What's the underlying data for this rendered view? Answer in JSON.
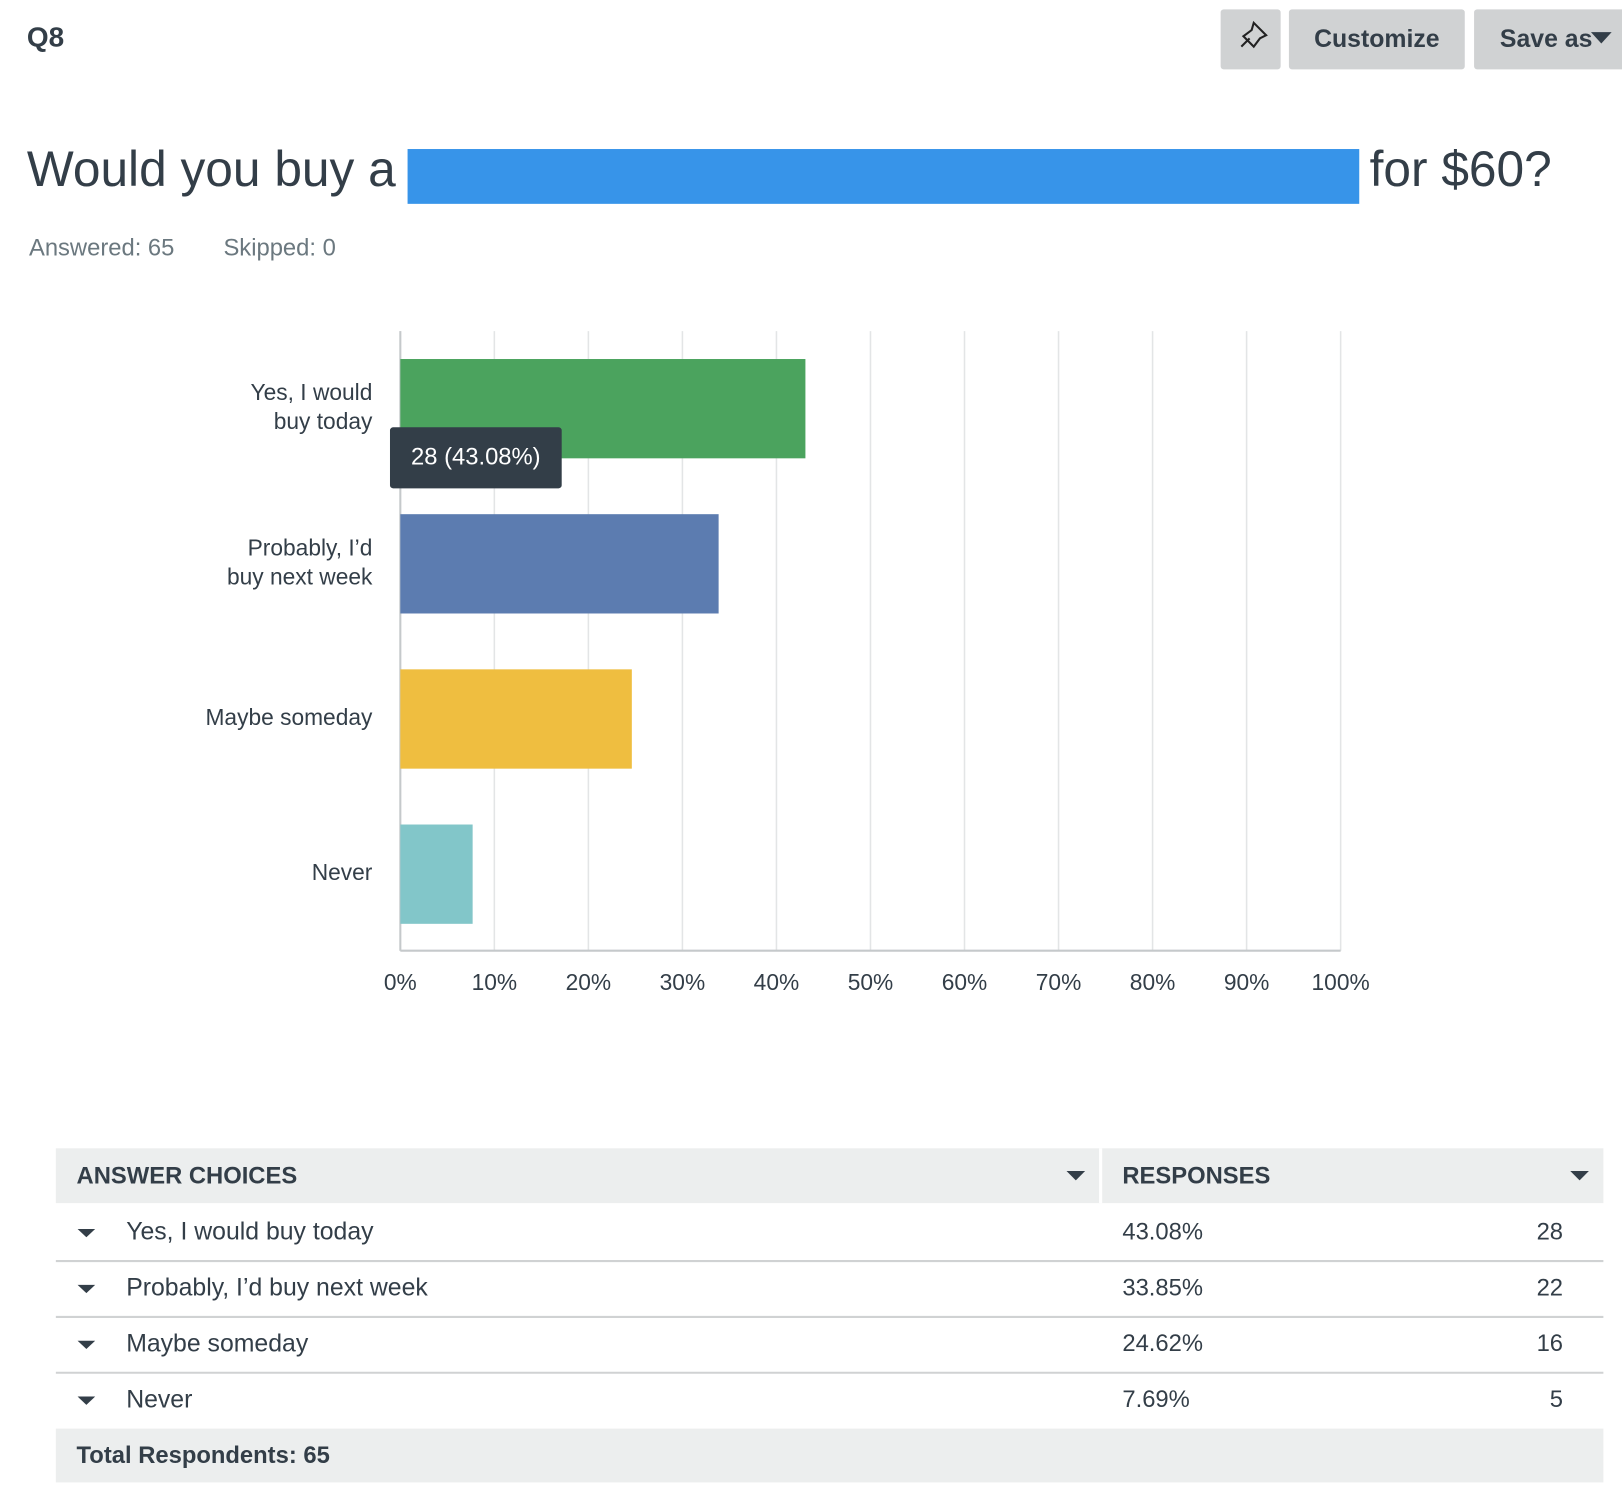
{
  "header": {
    "question_id": "Q8",
    "buttons": [
      "Customize",
      "Save as"
    ]
  },
  "question": {
    "title_before": "Would you buy a",
    "title_after": "for $60?",
    "answered": "Answered: 65",
    "skipped": "Skipped: 0"
  },
  "chart_data": {
    "type": "hbar",
    "categories": [
      [
        "Yes, I would",
        "buy today"
      ],
      [
        "Probably, I’d",
        "buy next week"
      ],
      [
        "Maybe someday"
      ],
      [
        "Never"
      ]
    ],
    "values": [
      43.08,
      33.85,
      24.62,
      7.69
    ],
    "colors": [
      "#4ba35e",
      "#5c7cb0",
      "#efbe40",
      "#82c6c9"
    ],
    "xlim": [
      0,
      100
    ],
    "xticks": [
      {
        "value": 0,
        "label": "0%"
      },
      {
        "value": 10,
        "label": "10%"
      },
      {
        "value": 20,
        "label": "20%"
      },
      {
        "value": 30,
        "label": "30%"
      },
      {
        "value": 40,
        "label": "40%"
      },
      {
        "value": 50,
        "label": "50%"
      },
      {
        "value": 60,
        "label": "60%"
      },
      {
        "value": 70,
        "label": "70%"
      },
      {
        "value": 80,
        "label": "80%"
      },
      {
        "value": 90,
        "label": "90%"
      },
      {
        "value": 100,
        "label": "100%"
      }
    ],
    "grid": true,
    "tooltip": "28 (43.08%)"
  },
  "table": {
    "headers": [
      "ANSWER CHOICES",
      "RESPONSES"
    ],
    "rows": [
      [
        "Yes, I would buy today",
        "43.08%",
        "28"
      ],
      [
        "Probably, I’d buy next week",
        "33.85%",
        "22"
      ],
      [
        "Maybe someday",
        "24.62%",
        "16"
      ],
      [
        "Never",
        "7.69%",
        "5"
      ]
    ],
    "footer": "Total Respondents: 65"
  }
}
